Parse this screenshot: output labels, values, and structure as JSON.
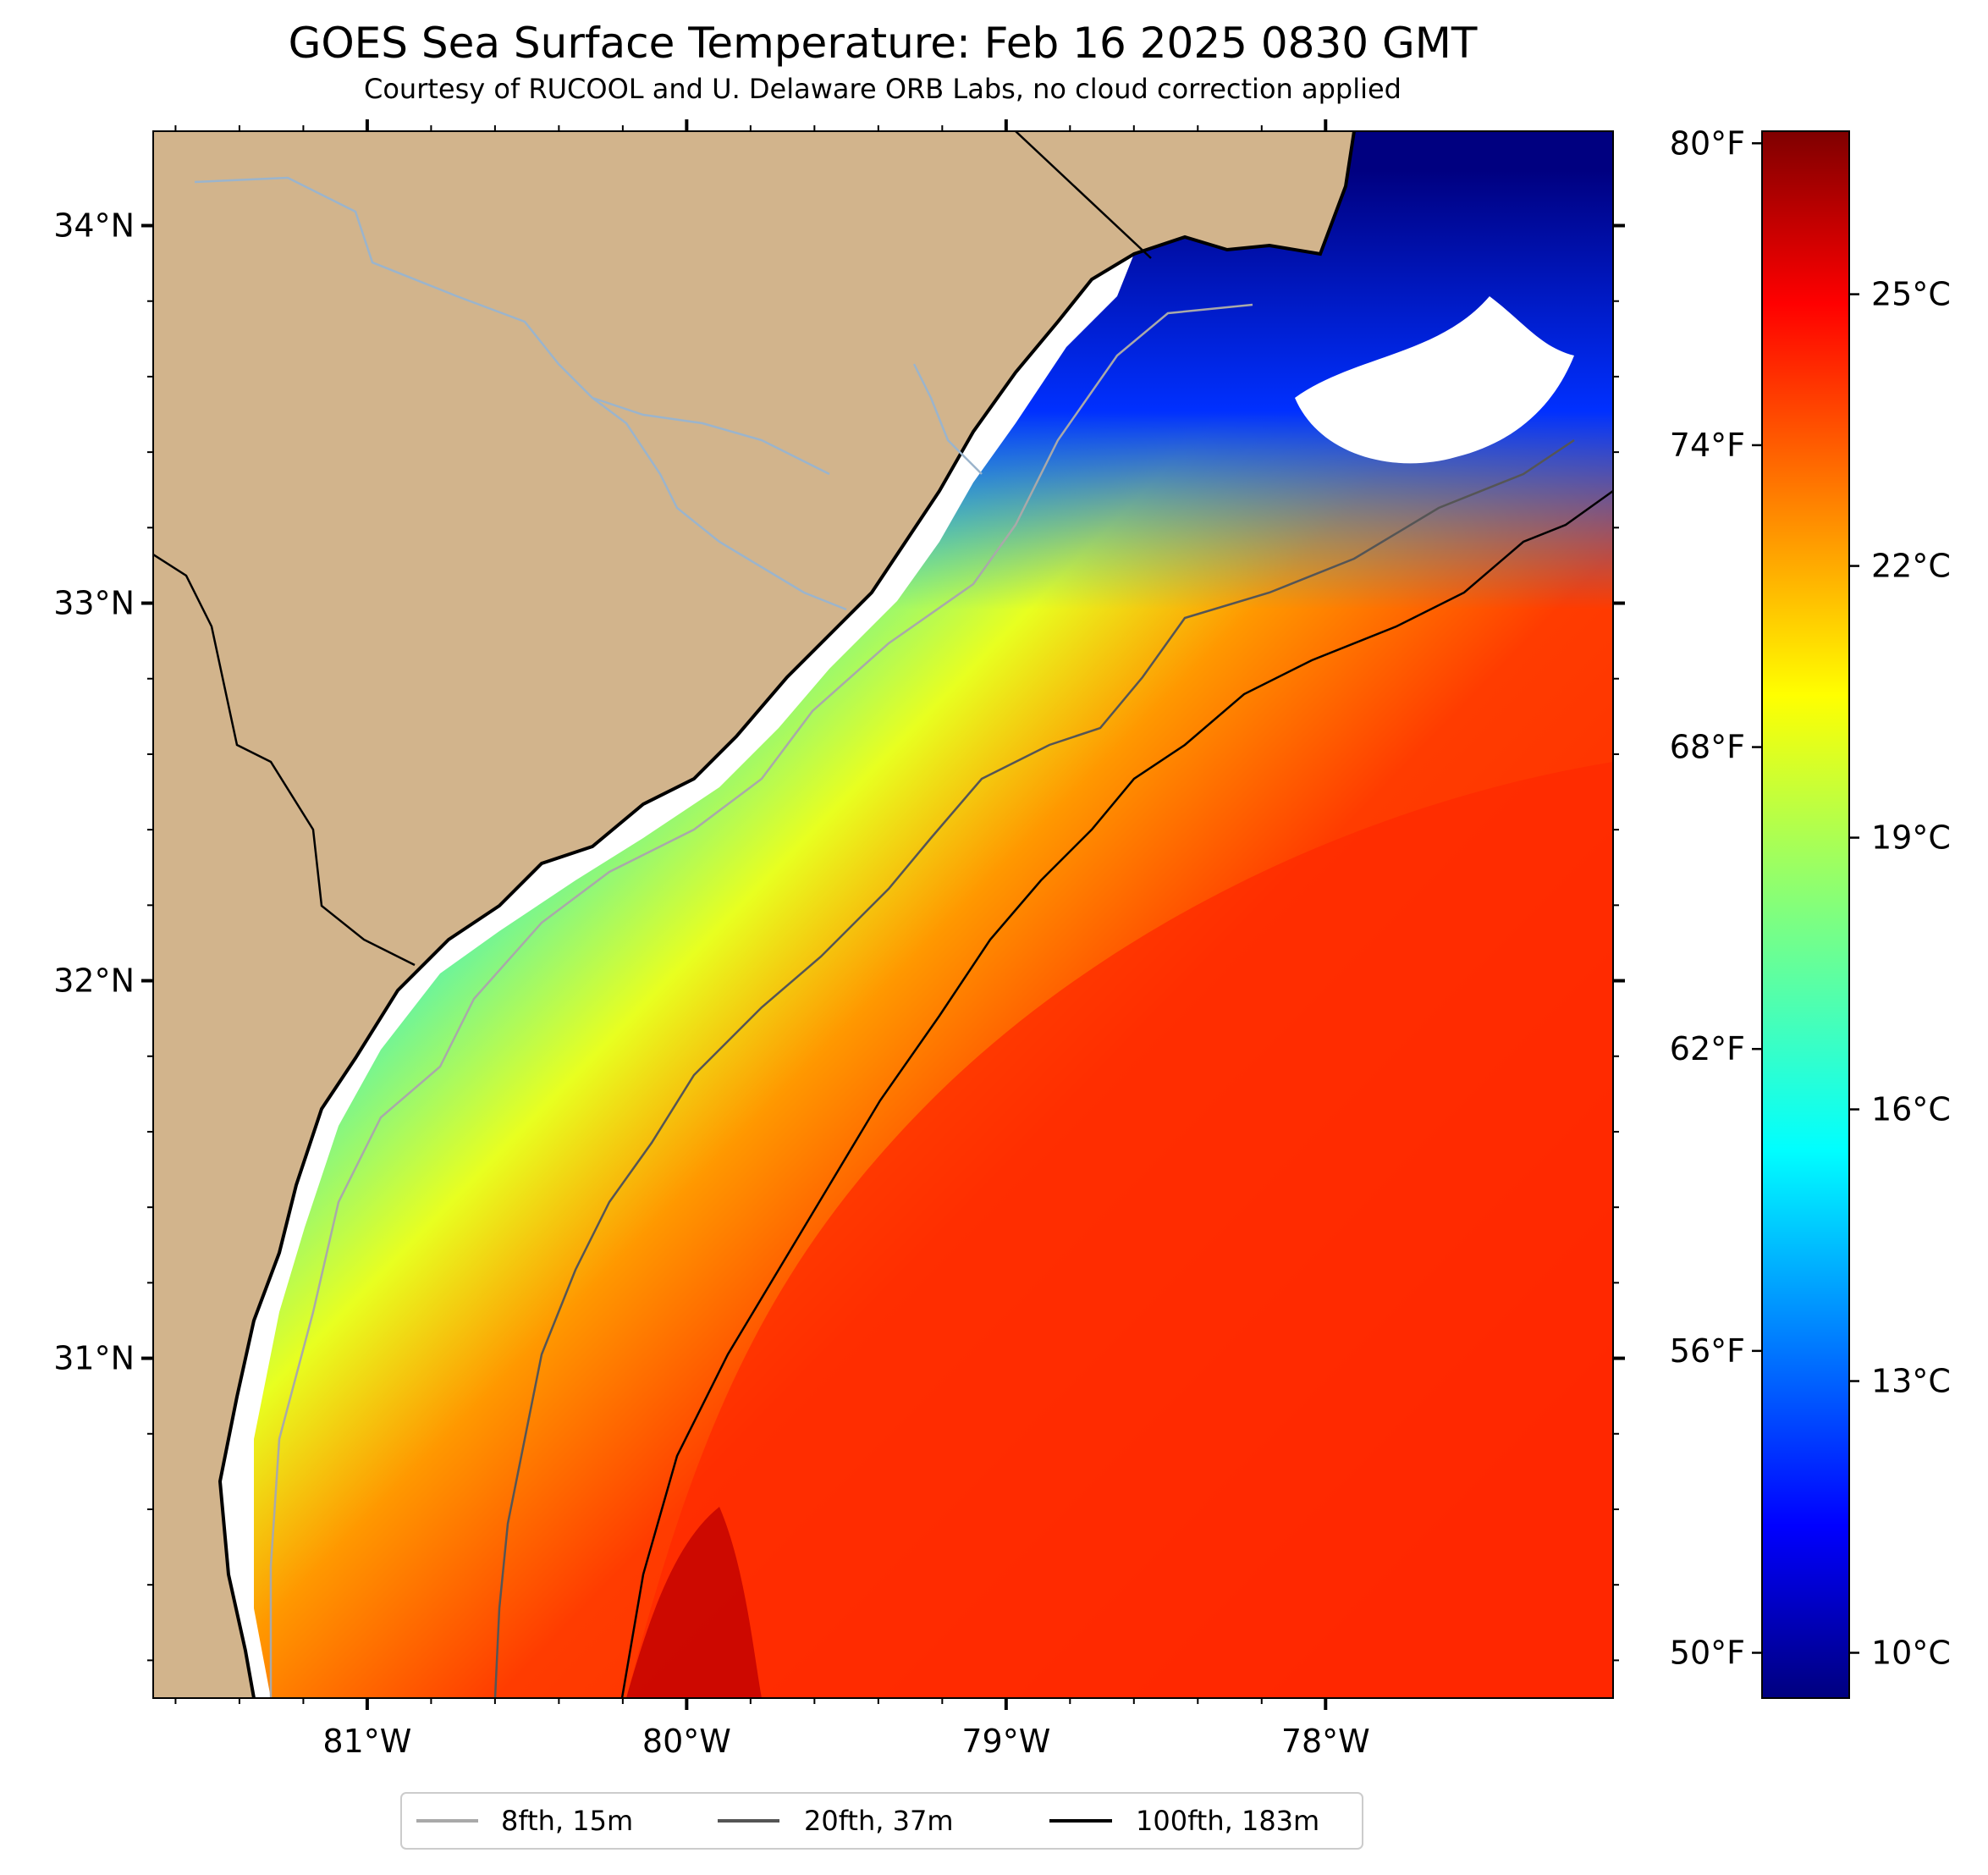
{
  "title": "GOES Sea Surface Temperature: Feb 16 2025 0830 GMT",
  "subtitle": "Courtesy of RUCOOL and U. Delaware ORB Labs, no cloud correction applied",
  "map": {
    "lon_range": [
      -81.67,
      -77.1
    ],
    "lat_range": [
      30.1,
      34.25
    ],
    "lon_ticks": [
      {
        "value": -81,
        "label": "81°W"
      },
      {
        "value": -80,
        "label": "80°W"
      },
      {
        "value": -79,
        "label": "79°W"
      },
      {
        "value": -78,
        "label": "78°W"
      }
    ],
    "lat_ticks": [
      {
        "value": 34,
        "label": "34°N"
      },
      {
        "value": 33,
        "label": "33°N"
      },
      {
        "value": 32,
        "label": "32°N"
      },
      {
        "value": 31,
        "label": "31°N"
      }
    ],
    "colors": {
      "land": "#d2b48c",
      "coastline": "#000000",
      "rivers": "#9bb4cc",
      "no_data": "#ffffff"
    }
  },
  "colorbar": {
    "colormap": "jet",
    "range_c": [
      9.5,
      26.8
    ],
    "celsius_ticks": [
      {
        "value": 10,
        "label": "10°C"
      },
      {
        "value": 13,
        "label": "13°C"
      },
      {
        "value": 16,
        "label": "16°C"
      },
      {
        "value": 19,
        "label": "19°C"
      },
      {
        "value": 22,
        "label": "22°C"
      },
      {
        "value": 25,
        "label": "25°C"
      }
    ],
    "fahrenheit_ticks": [
      {
        "value": 50,
        "label": "50°F"
      },
      {
        "value": 56,
        "label": "56°F"
      },
      {
        "value": 62,
        "label": "62°F"
      },
      {
        "value": 68,
        "label": "68°F"
      },
      {
        "value": 74,
        "label": "74°F"
      },
      {
        "value": 80,
        "label": "80°F"
      }
    ]
  },
  "legend": {
    "items": [
      {
        "label": "8fth, 15m",
        "color": "#a9a9a9"
      },
      {
        "label": "20fth, 37m",
        "color": "#555555"
      },
      {
        "label": "100fth, 183m",
        "color": "#000000"
      }
    ]
  }
}
